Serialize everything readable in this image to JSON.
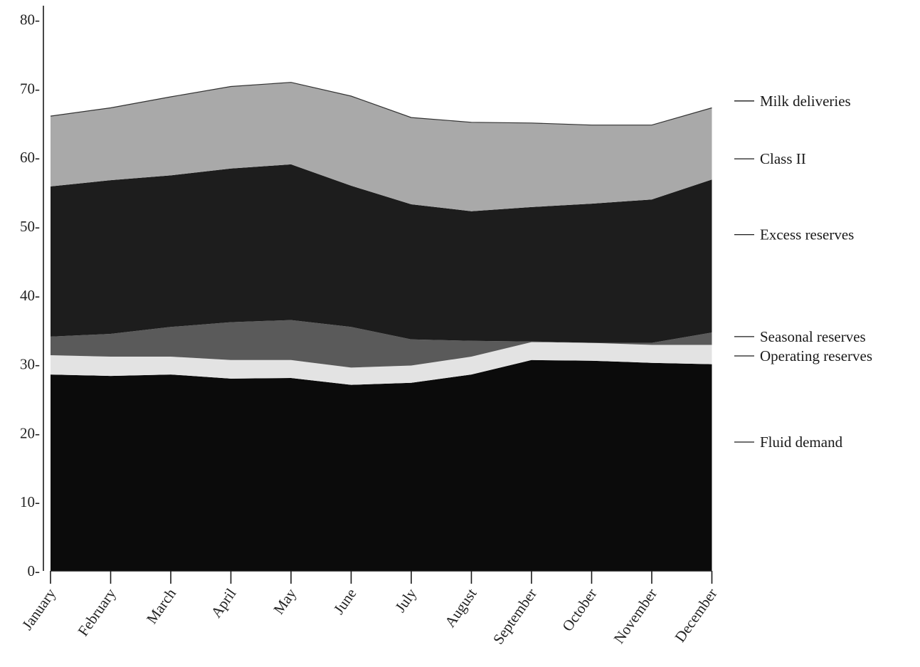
{
  "chart_data": {
    "type": "area",
    "stacked": true,
    "categories": [
      "January",
      "February",
      "March",
      "April",
      "May",
      "June",
      "July",
      "August",
      "September",
      "October",
      "November",
      "December"
    ],
    "ylim": [
      0,
      80
    ],
    "yticks": [
      {
        "value": 0,
        "label": "0-"
      },
      {
        "value": 10,
        "label": "10-"
      },
      {
        "value": 20,
        "label": "20-"
      },
      {
        "value": 30,
        "label": "30-"
      },
      {
        "value": 40,
        "label": "40-"
      },
      {
        "value": 50,
        "label": "50-"
      },
      {
        "value": 60,
        "label": "60-"
      },
      {
        "value": 70,
        "label": "70-"
      },
      {
        "value": 80,
        "label": "80-"
      }
    ],
    "grid": false,
    "legend_placement": "right",
    "series": [
      {
        "name": "Fluid demand",
        "color": "#0b0b0b",
        "values": [
          28.5,
          28.3,
          28.5,
          27.9,
          28.0,
          27.0,
          27.3,
          28.5,
          30.6,
          30.5,
          30.2,
          30.0
        ]
      },
      {
        "name": "Operating reserves",
        "color": "#e3e3e3",
        "values": [
          2.8,
          2.8,
          2.6,
          2.7,
          2.6,
          2.5,
          2.5,
          2.6,
          2.6,
          2.6,
          2.6,
          2.8
        ]
      },
      {
        "name": "Seasonal reserves",
        "color": "#5a5a5a",
        "values": [
          2.7,
          3.3,
          4.3,
          5.5,
          5.8,
          5.9,
          3.8,
          2.3,
          0.1,
          0.0,
          0.3,
          1.8
        ]
      },
      {
        "name": "Excess reserves",
        "color": "#1d1d1d",
        "values": [
          21.8,
          22.3,
          22.0,
          22.3,
          22.6,
          20.5,
          19.6,
          18.8,
          19.5,
          20.2,
          20.8,
          22.2
        ]
      },
      {
        "name": "Class II",
        "color": "#a9a9a9",
        "values": [
          10.2,
          10.5,
          11.4,
          11.9,
          11.9,
          13.0,
          12.6,
          12.9,
          12.2,
          11.4,
          10.8,
          10.4
        ]
      }
    ],
    "totals": {
      "name": "Milk deliveries",
      "values": [
        66.0,
        67.2,
        68.8,
        70.3,
        70.9,
        68.9,
        65.8,
        65.1,
        65.0,
        64.7,
        64.7,
        67.2
      ]
    },
    "legend": [
      {
        "label": "Milk deliveries",
        "value": 68.2
      },
      {
        "label": "Class II",
        "value": 59.8
      },
      {
        "label": "Excess reserves",
        "value": 48.8
      },
      {
        "label": "Seasonal reserves",
        "value": 34.0
      },
      {
        "label": "Operating reserves",
        "value": 31.2
      },
      {
        "label": "Fluid demand",
        "value": 18.7
      }
    ]
  }
}
